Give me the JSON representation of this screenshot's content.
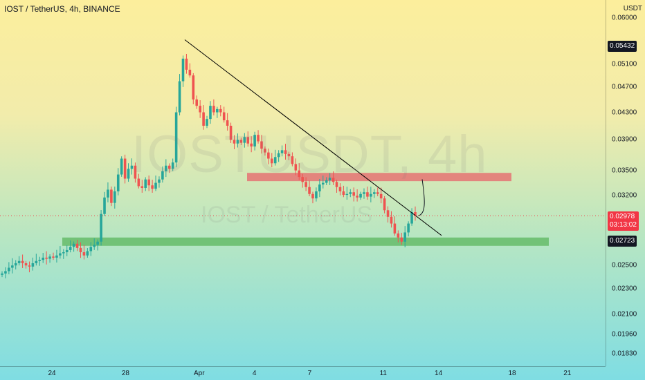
{
  "chart_data": {
    "type": "candlestick",
    "title": "IOST / TetherUS, 4h, BINANCE",
    "watermark": "IOSTUSDT, 4h",
    "watermark_sub": "IOST / TetherUS",
    "unit": "USDT",
    "y_scale": "log",
    "ylim": [
      0.0175,
      0.064
    ],
    "y_ticks": [
      "0.06000",
      "0.05100",
      "0.04700",
      "0.04300",
      "0.03900",
      "0.03500",
      "0.03200",
      "0.02500",
      "0.02300",
      "0.02100",
      "0.01960",
      "0.01830"
    ],
    "x_ticks": [
      "24",
      "28",
      "Apr",
      "4",
      "7",
      "11",
      "14",
      "18",
      "21"
    ],
    "price_labels": [
      {
        "value": "0.05432",
        "color": "#131722"
      },
      {
        "value": "0.02978",
        "color": "#f23645",
        "countdown": "03:13:02"
      },
      {
        "value": "0.02723",
        "color": "#131722"
      }
    ],
    "colors": {
      "up": "#26a69a",
      "down": "#ef5350",
      "resistance_zone": "#e57373",
      "support_zone": "#66bb6a",
      "trendline": "#000000"
    },
    "resistance_zone": [
      0.0337,
      0.0347
    ],
    "support_zone": [
      0.0268,
      0.0276
    ],
    "trendline": {
      "from": [
        "Mar 31",
        0.0556
      ],
      "to": [
        "Apr 14",
        0.0278
      ]
    },
    "closes": [
      0.0243,
      0.0245,
      0.0248,
      0.025,
      0.0252,
      0.0254,
      0.0252,
      0.025,
      0.0249,
      0.0252,
      0.0254,
      0.0255,
      0.0257,
      0.0256,
      0.0258,
      0.0257,
      0.0259,
      0.0261,
      0.0262,
      0.0264,
      0.0267,
      0.027,
      0.0266,
      0.0262,
      0.0259,
      0.0263,
      0.0267,
      0.0269,
      0.0272,
      0.03,
      0.0318,
      0.0327,
      0.0312,
      0.0325,
      0.0345,
      0.0365,
      0.034,
      0.0352,
      0.0356,
      0.034,
      0.0331,
      0.0329,
      0.0339,
      0.0332,
      0.0328,
      0.0335,
      0.0339,
      0.0349,
      0.0356,
      0.0352,
      0.036,
      0.043,
      0.048,
      0.052,
      0.05,
      0.049,
      0.045,
      0.044,
      0.043,
      0.041,
      0.042,
      0.044,
      0.043,
      0.0435,
      0.043,
      0.0418,
      0.041,
      0.039,
      0.0385,
      0.039,
      0.0386,
      0.0394,
      0.0385,
      0.0381,
      0.0397,
      0.0388,
      0.0378,
      0.0373,
      0.0365,
      0.0359,
      0.0367,
      0.0372,
      0.0376,
      0.0371,
      0.0368,
      0.0358,
      0.035,
      0.0342,
      0.0336,
      0.033,
      0.0322,
      0.0317,
      0.0325,
      0.0333,
      0.0335,
      0.0338,
      0.0341,
      0.0336,
      0.033,
      0.0325,
      0.0321,
      0.0322,
      0.0324,
      0.032,
      0.0318,
      0.0322,
      0.0324,
      0.0319,
      0.0322,
      0.0324,
      0.0322,
      0.0317,
      0.0304,
      0.0297,
      0.029,
      0.028,
      0.0276,
      0.0272,
      0.0281,
      0.029,
      0.0302,
      0.0298
    ]
  }
}
